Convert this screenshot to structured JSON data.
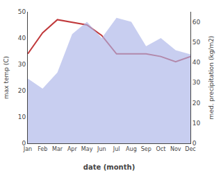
{
  "chart_data": {
    "type": "line",
    "xlabel": "date (month)",
    "ylabel": "max temp (C)",
    "y2label": "med. precipitation (kg/m2)",
    "categories": [
      "Jan",
      "Feb",
      "Mar",
      "Apr",
      "May",
      "Jun",
      "Jul",
      "Aug",
      "Sep",
      "Oct",
      "Nov",
      "Dec"
    ],
    "series": [
      {
        "type": "area",
        "axis": "y2",
        "color": "#aab4e8",
        "values": [
          32,
          27,
          35,
          54,
          60,
          52,
          62,
          60,
          48,
          52,
          46,
          44
        ]
      },
      {
        "type": "line",
        "color": "#c0393b",
        "values": [
          34,
          42,
          47,
          46,
          45,
          41,
          34,
          34,
          34,
          33,
          31,
          33
        ]
      }
    ],
    "ylim": [
      0,
      50
    ],
    "yticks": [
      0,
      10,
      20,
      30,
      40,
      50
    ],
    "y2lim": [
      0,
      65
    ],
    "y2ticks": [
      0,
      10,
      20,
      30,
      40,
      50,
      60
    ],
    "grid": false
  }
}
